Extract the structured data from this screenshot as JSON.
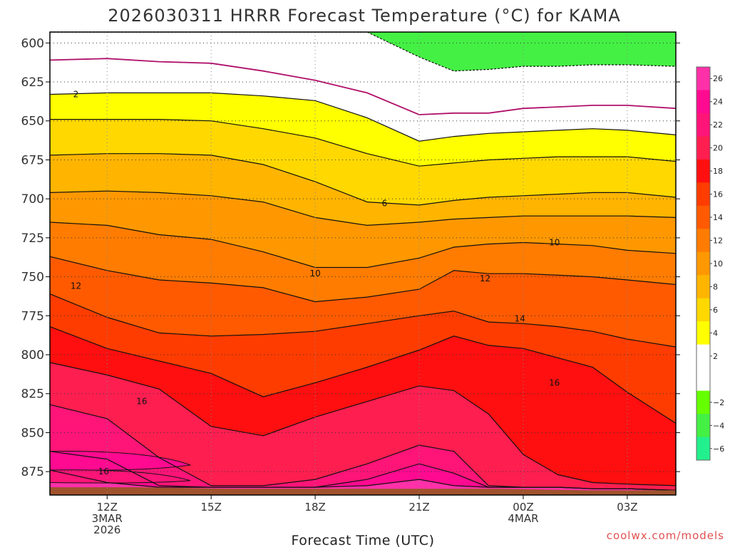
{
  "chart_data": {
    "type": "contour",
    "title": "2026030311 HRRR Forecast Temperature (°C) for KAMA",
    "xlabel": "Forecast Time (UTC)",
    "ylabel": "",
    "credit": "coolwx.com/models",
    "y_axis": {
      "quantity": "pressure (mb)",
      "inverted": true,
      "range": [
        593,
        890
      ],
      "ticks": [
        600,
        625,
        650,
        675,
        700,
        725,
        750,
        775,
        800,
        825,
        850,
        875
      ]
    },
    "x_axis": {
      "range_hours": [
        -1.65,
        16.4
      ],
      "ticks": [
        {
          "hour": 0,
          "lines": [
            "12Z",
            "3MAR",
            "2026"
          ]
        },
        {
          "hour": 3,
          "lines": [
            "15Z"
          ]
        },
        {
          "hour": 6,
          "lines": [
            "18Z"
          ]
        },
        {
          "hour": 9,
          "lines": [
            "21Z"
          ]
        },
        {
          "hour": 12,
          "lines": [
            "00Z",
            "4MAR"
          ]
        },
        {
          "hour": 15,
          "lines": [
            "03Z"
          ]
        }
      ]
    },
    "grid": true,
    "colorbar": {
      "placement": "right",
      "tick_labels": [
        "26",
        "24",
        "22",
        "20",
        "18",
        "16",
        "14",
        "12",
        "10",
        "8",
        "6",
        "4",
        "2",
        "−2",
        "−4",
        "−6"
      ],
      "levels": [
        {
          "value": -6,
          "color": "#22f08c"
        },
        {
          "value": -4,
          "color": "#44f044"
        },
        {
          "value": -2,
          "color": "#66ff00"
        },
        {
          "value": 0,
          "color": "#ffffff"
        },
        {
          "value": 2,
          "color": "#ffffff"
        },
        {
          "value": 4,
          "color": "#ffff00"
        },
        {
          "value": 6,
          "color": "#ffd800"
        },
        {
          "value": 8,
          "color": "#ffb400"
        },
        {
          "value": 10,
          "color": "#ff9800"
        },
        {
          "value": 12,
          "color": "#ff7c00"
        },
        {
          "value": 14,
          "color": "#ff5a00"
        },
        {
          "value": 16,
          "color": "#ff3c00"
        },
        {
          "value": 18,
          "color": "#ff0f0f"
        },
        {
          "value": 20,
          "color": "#ff1e50"
        },
        {
          "value": 22,
          "color": "#ff1478"
        },
        {
          "value": 24,
          "color": "#ff0a90"
        },
        {
          "value": 26,
          "color": "#ff30a8"
        }
      ]
    },
    "ground": {
      "color": "#a0522d",
      "surface_pressure_mb": [
        885,
        885,
        886,
        886,
        886,
        886,
        887,
        887
      ]
    },
    "contour_labels": [
      {
        "text": "2",
        "hour": -0.9,
        "p": 633
      },
      {
        "text": "6",
        "hour": 8.0,
        "p": 703
      },
      {
        "text": "10",
        "hour": 12.9,
        "p": 728
      },
      {
        "text": "10",
        "hour": 6.0,
        "p": 748
      },
      {
        "text": "12",
        "hour": -0.9,
        "p": 756
      },
      {
        "text": "12",
        "hour": 10.9,
        "p": 751
      },
      {
        "text": "14",
        "hour": 11.9,
        "p": 777
      },
      {
        "text": "16",
        "hour": 12.9,
        "p": 818
      },
      {
        "text": "16",
        "hour": 1.0,
        "p": 830
      },
      {
        "text": "16",
        "hour": -0.1,
        "p": 875
      }
    ],
    "x_hours": [
      -1.65,
      0,
      1.5,
      3,
      4.5,
      6,
      7.5,
      9,
      10,
      11,
      12,
      13,
      14,
      15,
      16.4
    ],
    "isotherms": [
      {
        "value": -2,
        "style": "dashed",
        "p": [
          593,
          593,
          593,
          593,
          593,
          593,
          593,
          609,
          618,
          617,
          615,
          615,
          614,
          614,
          615
        ]
      },
      {
        "value": 0,
        "style": "magenta",
        "p": [
          611,
          610,
          612,
          613,
          618,
          624,
          632,
          646,
          645,
          645,
          642,
          641,
          640,
          640,
          642
        ]
      },
      {
        "value": 2,
        "style": "solid",
        "p": [
          633,
          632,
          632,
          632,
          634,
          637,
          648,
          663,
          660,
          658,
          657,
          656,
          655,
          656,
          659
        ]
      },
      {
        "value": 4,
        "style": "solid",
        "p": [
          649,
          649,
          649,
          650,
          655,
          661,
          671,
          679,
          677,
          675,
          674,
          673,
          673,
          673,
          676
        ]
      },
      {
        "value": 6,
        "style": "solid",
        "p": [
          672,
          671,
          671,
          672,
          678,
          689,
          702,
          704,
          701,
          699,
          698,
          697,
          696,
          696,
          699
        ]
      },
      {
        "value": 8,
        "style": "solid",
        "p": [
          696,
          695,
          696,
          698,
          702,
          712,
          717,
          715,
          713,
          712,
          711,
          711,
          711,
          711,
          712
        ]
      },
      {
        "value": 10,
        "style": "solid",
        "p": [
          715,
          717,
          723,
          726,
          734,
          744,
          744,
          738,
          731,
          729,
          728,
          729,
          730,
          733,
          735
        ]
      },
      {
        "value": 12,
        "style": "solid",
        "p": [
          737,
          746,
          752,
          754,
          757,
          766,
          763,
          758,
          746,
          748,
          748,
          749,
          750,
          752,
          755
        ]
      },
      {
        "value": 14,
        "style": "solid",
        "p": [
          761,
          776,
          786,
          788,
          787,
          785,
          780,
          775,
          772,
          779,
          780,
          782,
          785,
          790,
          795
        ]
      },
      {
        "value": 16,
        "style": "solid",
        "p": [
          782,
          796,
          804,
          812,
          827,
          818,
          808,
          797,
          788,
          794,
          796,
          802,
          808,
          824,
          844
        ]
      },
      {
        "value": 18,
        "style": "solid",
        "p": [
          805,
          813,
          822,
          846,
          852,
          840,
          830,
          820,
          823,
          838,
          864,
          877,
          882,
          883,
          884
        ]
      },
      {
        "value": 20,
        "style": "solid",
        "p": [
          832,
          841,
          866,
          884,
          884,
          880,
          870,
          858,
          862,
          884,
          885,
          885,
          886,
          886,
          887
        ]
      },
      {
        "value": 22,
        "style": "solid",
        "p": [
          862,
          867,
          884,
          885,
          885,
          885,
          880,
          870,
          876,
          885,
          885,
          885,
          886,
          886,
          887
        ]
      },
      {
        "value": 24,
        "style": "solid",
        "p": [
          874,
          882,
          885,
          885,
          885,
          885,
          884,
          880,
          884,
          885,
          885,
          885,
          886,
          886,
          887
        ]
      }
    ],
    "west_edge_bands": [
      {
        "value": 24,
        "p": [
          862,
          874
        ]
      },
      {
        "value": 22,
        "p": [
          874,
          882
        ]
      }
    ]
  }
}
